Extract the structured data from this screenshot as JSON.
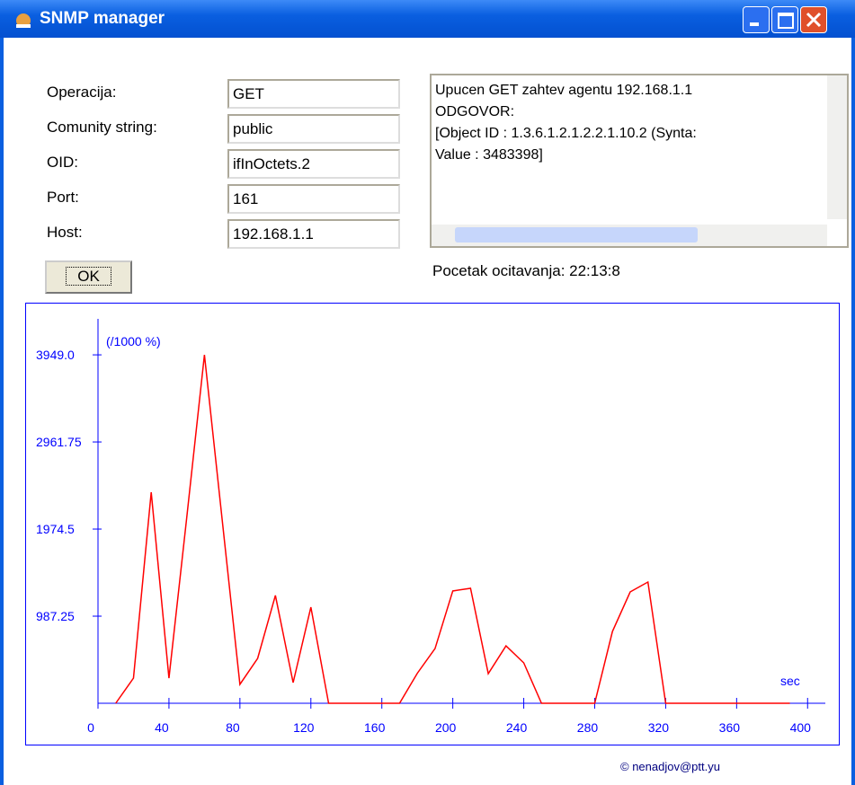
{
  "window": {
    "title": "SNMP manager"
  },
  "form": {
    "fields": [
      {
        "label": "Operacija:",
        "value": "GET"
      },
      {
        "label": "Comunity string:",
        "value": "public"
      },
      {
        "label": "OID:",
        "value": "ifInOctets.2"
      },
      {
        "label": "Port:",
        "value": "161"
      },
      {
        "label": "Host:",
        "value": "192.168.1.1"
      }
    ],
    "button": "OK"
  },
  "response": {
    "lines": [
      "Upucen GET zahtev agentu 192.168.1.1",
      "ODGOVOR:",
      "[Object ID : 1.3.6.1.2.1.2.2.1.10.2  (Synta:",
      "Value : 3483398]"
    ]
  },
  "status": "Pocetak ocitavanja: 22:13:8",
  "footer": "© nenadjov@ptt.yu",
  "chart_data": {
    "type": "line",
    "y_label": "(/1000 %)",
    "x_label": "sec",
    "x": [
      10,
      20,
      30,
      40,
      50,
      60,
      70,
      80,
      90,
      100,
      110,
      120,
      130,
      140,
      150,
      160,
      170,
      180,
      190,
      200,
      210,
      220,
      230,
      240,
      250,
      260,
      270,
      280,
      290,
      300,
      310,
      320,
      330,
      340,
      350,
      360,
      370,
      380,
      390
    ],
    "series": [
      {
        "color": "#ff0000",
        "values": [
          0,
          285,
          2392,
          285,
          2100,
          3949,
          2080,
          214,
          509,
          1222,
          234,
          1089,
          0,
          0,
          0,
          0,
          0,
          340,
          620,
          1273,
          1303,
          336,
          651,
          458,
          0,
          0,
          0,
          0,
          814,
          1262,
          1374,
          0,
          0,
          0,
          0,
          0,
          0,
          0,
          0
        ]
      }
    ],
    "xlim": [
      0,
      410
    ],
    "ylim": [
      0,
      4357
    ],
    "xticks": [
      0,
      40,
      80,
      120,
      160,
      200,
      240,
      280,
      320,
      360,
      400
    ],
    "yticks": [
      987.25,
      1974.5,
      2961.75,
      {
        "value": 3949,
        "label": "3949.0"
      }
    ],
    "axis_color": "#0000ff"
  }
}
